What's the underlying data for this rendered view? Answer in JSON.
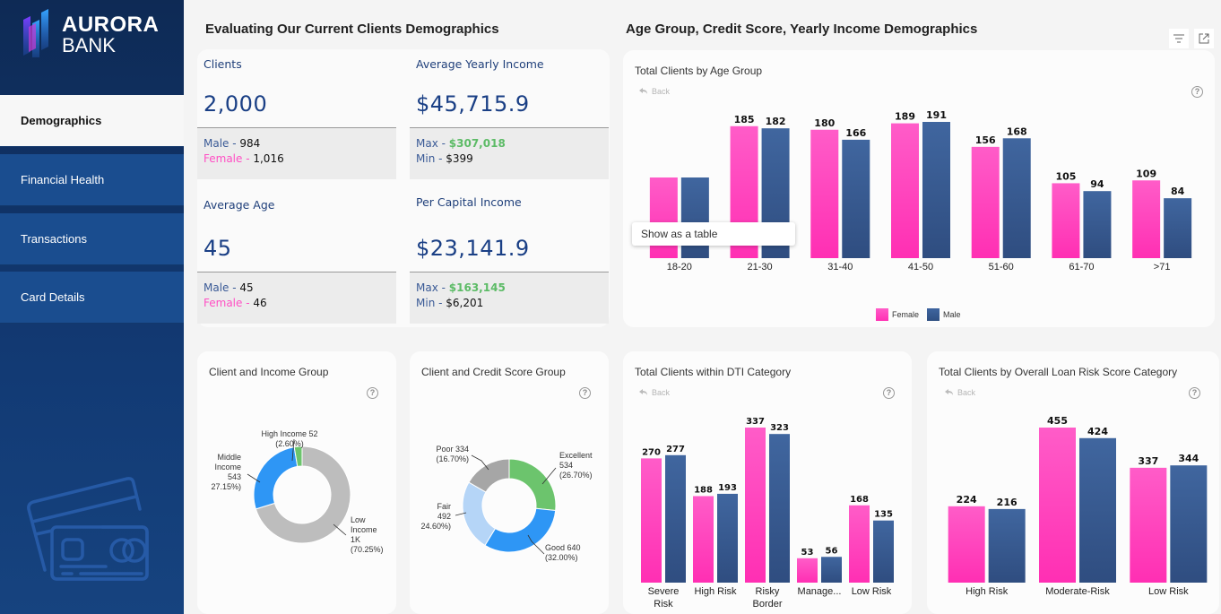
{
  "brand": {
    "name_line1": "AURORA",
    "name_line2": "BANK"
  },
  "sidebar": {
    "items": [
      {
        "label": "Demographics",
        "active": true
      },
      {
        "label": "Financial Health",
        "active": false
      },
      {
        "label": "Transactions",
        "active": false
      },
      {
        "label": "Card Details",
        "active": false
      }
    ]
  },
  "sections": {
    "left_title": "Evaluating Our Current Clients Demographics",
    "right_title": "Age Group, Credit Score, Yearly Income Demographics"
  },
  "kpis": {
    "clients": {
      "label": "Clients",
      "value": "2,000",
      "male_label": "Male - ",
      "male_value": "984",
      "female_label": "Female - ",
      "female_value": "1,016"
    },
    "avg_income": {
      "label": "Average Yearly Income",
      "value": "$45,715.9",
      "max_label": "Max - ",
      "max_value": "$307,018",
      "min_label": "Min - ",
      "min_value": "$399"
    },
    "avg_age": {
      "label": "Average Age",
      "value": "45",
      "male_label": "Male - ",
      "male_value": "45",
      "female_label": "Female - ",
      "female_value": "46"
    },
    "per_capita": {
      "label": "Per Capital Income",
      "value": "$23,141.9",
      "max_label": "Max - ",
      "max_value": "$163,145",
      "min_label": "Min - ",
      "min_value": "$6,201"
    }
  },
  "common": {
    "back_label": "Back",
    "help_glyph": "?",
    "tooltip": "Show as a table"
  },
  "colors": {
    "female": "#ff3fb8",
    "male": "#34558c",
    "green": "#6cc46d",
    "blue": "#2e96f5",
    "light_blue": "#b5d5f7",
    "grey": "#bdbdbd",
    "dark_grey": "#a6a6a6"
  },
  "chart_data": [
    {
      "id": "age",
      "type": "bar",
      "title": "Total Clients by Age Group",
      "categories": [
        "18-20",
        "21-30",
        "31-40",
        "41-50",
        "51-60",
        "61-70",
        ">71"
      ],
      "series": [
        {
          "name": "Female",
          "values": [
            null,
            185,
            180,
            189,
            156,
            105,
            109
          ]
        },
        {
          "name": "Male",
          "values": [
            null,
            182,
            166,
            191,
            168,
            94,
            84
          ]
        }
      ],
      "legend": [
        "Female",
        "Male"
      ],
      "legend_position": "bottom-center",
      "note": "18-20 bar values hidden behind 'Show as a table' tooltip"
    },
    {
      "id": "income",
      "type": "pie",
      "title": "Client and Income Group",
      "slices": [
        {
          "label": "Low Income",
          "value_label": "1K",
          "value": 1405,
          "percent": "70.25%"
        },
        {
          "label": "Middle Income",
          "value_label": "543",
          "value": 543,
          "percent": "27.15%"
        },
        {
          "label": "High Income",
          "value_label": "52",
          "value": 52,
          "percent": "2.60%"
        }
      ]
    },
    {
      "id": "credit",
      "type": "pie",
      "title": "Client and Credit Score Group",
      "slices": [
        {
          "label": "Excellent",
          "value_label": "534",
          "value": 534,
          "percent": "26.70%"
        },
        {
          "label": "Good",
          "value_label": "640",
          "value": 640,
          "percent": "32.00%"
        },
        {
          "label": "Fair",
          "value_label": "492",
          "value": 492,
          "percent": "24.60%"
        },
        {
          "label": "Poor",
          "value_label": "334",
          "value": 334,
          "percent": "16.70%"
        }
      ]
    },
    {
      "id": "dti",
      "type": "bar",
      "title": "Total Clients within DTI Category",
      "categories": [
        "Severe Risk",
        "High Risk",
        "Risky Border",
        "Manage...",
        "Low Risk"
      ],
      "series": [
        {
          "name": "Female",
          "values": [
            270,
            188,
            337,
            53,
            168
          ]
        },
        {
          "name": "Male",
          "values": [
            277,
            193,
            323,
            56,
            135
          ]
        }
      ]
    },
    {
      "id": "loan",
      "type": "bar",
      "title": "Total Clients by Overall Loan Risk Score Category",
      "categories": [
        "High Risk",
        "Moderate-Risk",
        "Low Risk"
      ],
      "series": [
        {
          "name": "Female",
          "values": [
            224,
            455,
            337
          ]
        },
        {
          "name": "Male",
          "values": [
            216,
            424,
            344
          ]
        }
      ]
    }
  ]
}
